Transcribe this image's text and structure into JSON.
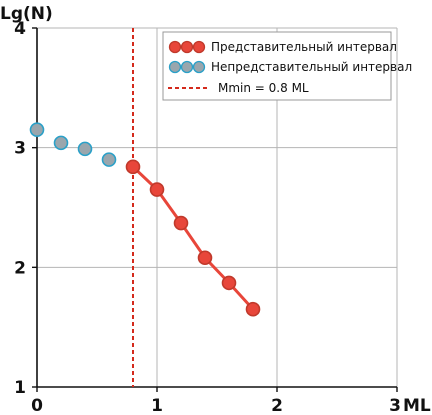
{
  "chart_data": {
    "type": "scatter",
    "xlabel": "ML",
    "ylabel": "Lg(N)",
    "xlim": [
      0,
      3
    ],
    "ylim": [
      1,
      4
    ],
    "x_ticks": [
      "0",
      "1",
      "2",
      "3"
    ],
    "y_ticks": [
      "1",
      "2",
      "3",
      "4"
    ],
    "grid": true,
    "legend_position": "top-right",
    "threshold": {
      "label": "Mmin = 0.8 ML",
      "x": 0.8,
      "color": "#d42a1c"
    },
    "series": [
      {
        "name": "Представительный интервал",
        "color": "#e8463a",
        "edge": "#c0392b",
        "line": true,
        "x": [
          0.8,
          1.0,
          1.2,
          1.4,
          1.6,
          1.8
        ],
        "y": [
          2.84,
          2.65,
          2.37,
          2.08,
          1.87,
          1.65
        ]
      },
      {
        "name": "Непредставительный интервал",
        "color": "#9aa6ad",
        "edge": "#2aa0c8",
        "line": false,
        "x": [
          0.0,
          0.2,
          0.4,
          0.6
        ],
        "y": [
          3.15,
          3.04,
          2.99,
          2.9
        ]
      }
    ]
  }
}
